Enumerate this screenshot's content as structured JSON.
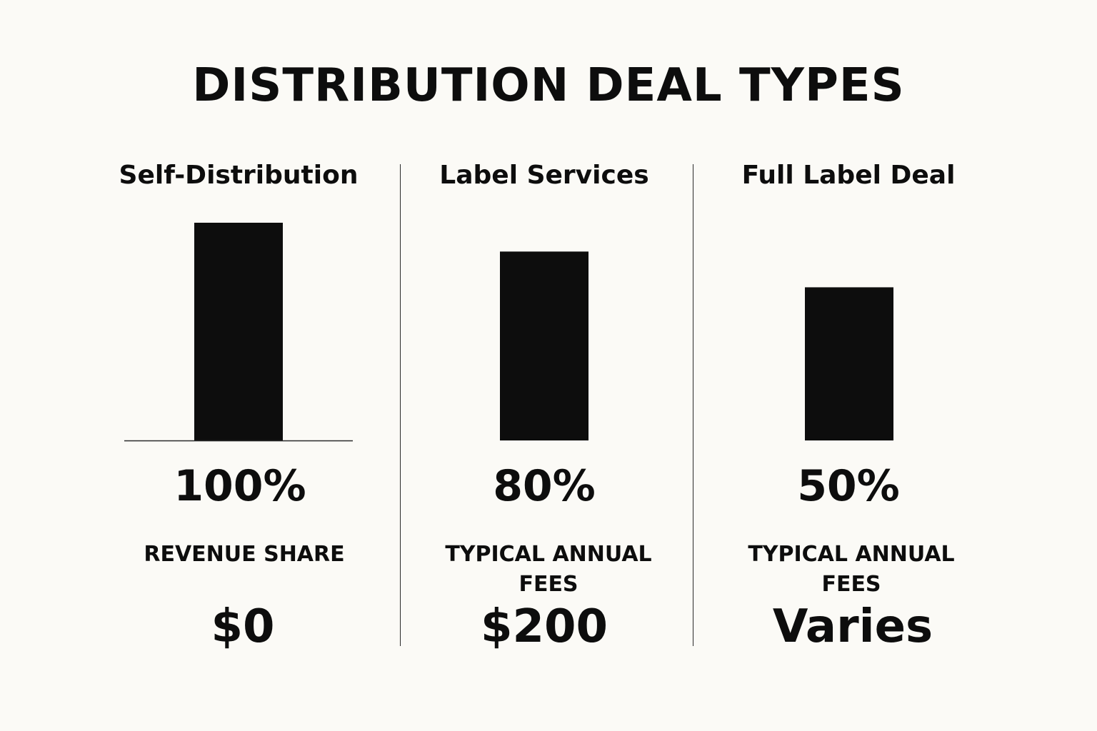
{
  "title": "DISTRIBUTION DEAL TYPES",
  "colors": {
    "background": "#fbfaf6",
    "bar": "#0d0d0d",
    "text": "#0d0d0d"
  },
  "columns": [
    {
      "name": "Self-Distribution",
      "percent_label": "100%",
      "metric_label": "REVENUE SHARE",
      "metric_value": "$0"
    },
    {
      "name": "Label Services",
      "percent_label": "80%",
      "metric_label": "TYPICAL ANNUAL FEES",
      "metric_value": "$200"
    },
    {
      "name": "Full Label Deal",
      "percent_label": "50%",
      "metric_label": "TYPICAL ANNUAL FEES",
      "metric_value": "Varies"
    }
  ],
  "chart_data": {
    "type": "bar",
    "title": "DISTRIBUTION DEAL TYPES",
    "categories": [
      "Self-Distribution",
      "Label Services",
      "Full Label Deal"
    ],
    "values": [
      100,
      80,
      50
    ],
    "data_labels": [
      "100%",
      "80%",
      "50%"
    ],
    "xlabel": "",
    "ylabel": "",
    "grid": false,
    "axes_visible": false,
    "baseline_visible_under": [
      "Self-Distribution"
    ]
  }
}
